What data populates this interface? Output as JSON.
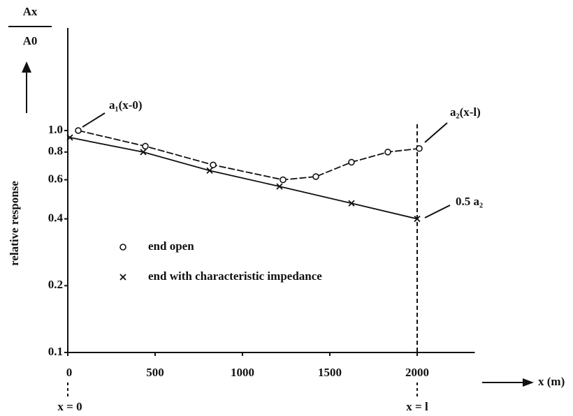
{
  "chart_data": {
    "type": "line",
    "y_ratio_numerator": "Ax",
    "y_ratio_denominator": "A0",
    "y_label": "relative response",
    "x_label": "x (m)",
    "x_start_label": "x = 0",
    "x_end_label": "x = l",
    "annotations": [
      "a₁(x-0)",
      "a₂(x-l)",
      "0.5 a₂"
    ],
    "xlim": [
      0,
      2330
    ],
    "xticks": [
      0,
      500,
      1000,
      1500,
      2000
    ],
    "ylim": [
      0.1,
      2.9
    ],
    "log_y": true,
    "yticks": [
      0.1,
      0.2,
      0.4,
      0.6,
      0.8,
      {
        "value": 1,
        "label": "1.0"
      }
    ],
    "series": [
      {
        "name": "end open",
        "marker": "o",
        "color": "#111",
        "dashed": true,
        "x": [
          60,
          444,
          832,
          1232,
          1420,
          1624,
          1832,
          2012
        ],
        "values": [
          1.0,
          0.85,
          0.7,
          0.6,
          0.62,
          0.72,
          0.8,
          0.83
        ]
      },
      {
        "name": "end with characteristic impedance",
        "marker": "x",
        "color": "#111",
        "dashed": false,
        "x": [
          12,
          432,
          812,
          1212,
          1624,
          2000
        ],
        "values": [
          0.93,
          0.8,
          0.66,
          0.56,
          0.47,
          0.4
        ]
      }
    ]
  }
}
